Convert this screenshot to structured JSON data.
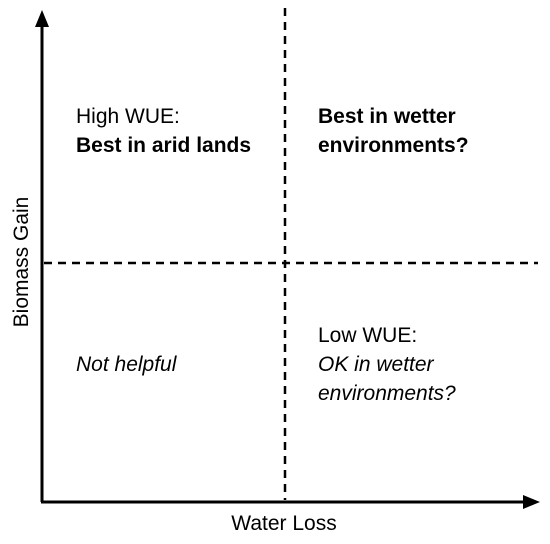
{
  "axes": {
    "x_label": "Water Loss",
    "y_label": "Biomass Gain"
  },
  "quadrants": {
    "top_left": {
      "line1": "High WUE:",
      "line2": "Best in arid lands"
    },
    "top_right": {
      "line1": "Best in wetter",
      "line2": "environments?"
    },
    "bottom_left": {
      "line1": "Not helpful"
    },
    "bottom_right": {
      "line1": "Low WUE:",
      "line2": "OK in wetter",
      "line3": "environments?"
    }
  }
}
